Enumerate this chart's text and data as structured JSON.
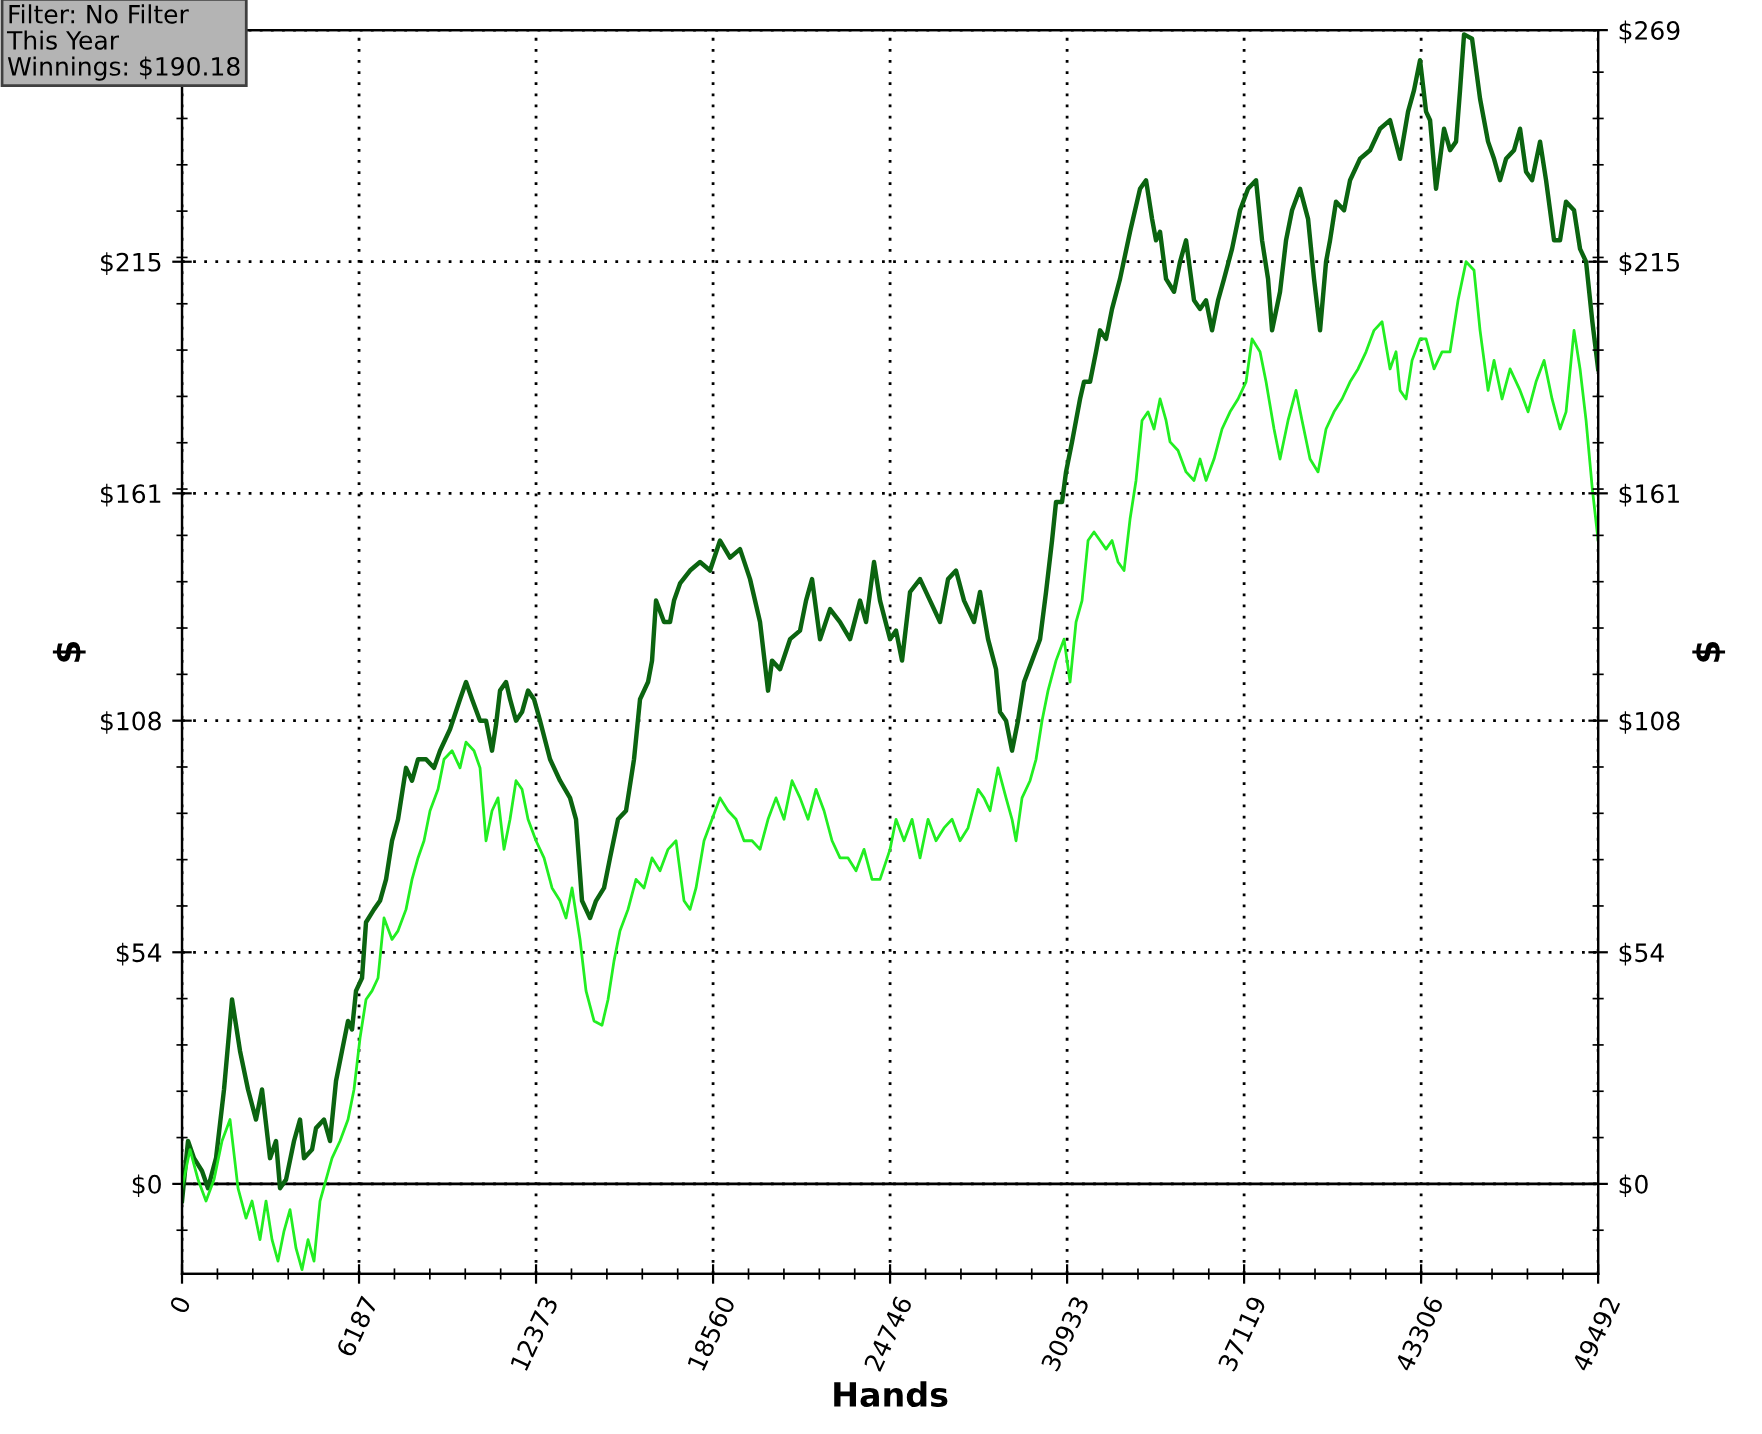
{
  "chart_data": {
    "type": "line",
    "xlabel": "Hands",
    "ylabel": "$",
    "y2label": "$",
    "annotations": [
      "Filter: No Filter",
      "This Year",
      "Winnings: $190.18"
    ],
    "xlim": [
      0,
      49492
    ],
    "xticks": [
      0,
      6187,
      12373,
      18560,
      24746,
      30933,
      37119,
      43306,
      49492
    ],
    "ylim": [
      -21,
      269
    ],
    "yticks": [
      {
        "value": 0,
        "label": "$0"
      },
      {
        "value": 54,
        "label": "$54"
      },
      {
        "value": 108,
        "label": "$108"
      },
      {
        "value": 161,
        "label": "$161"
      },
      {
        "value": 215,
        "label": "$215"
      },
      {
        "value": 269,
        "label": null
      }
    ],
    "y2lim": [
      -21,
      269
    ],
    "y2ticks": [
      {
        "value": 0,
        "label": "$0"
      },
      {
        "value": 54,
        "label": "$54"
      },
      {
        "value": 108,
        "label": "$108"
      },
      {
        "value": 161,
        "label": "$161"
      },
      {
        "value": 215,
        "label": "$215"
      },
      {
        "value": 269,
        "label": "$269"
      }
    ],
    "grid": true,
    "marker": "none",
    "line_style": "solid",
    "ref_lines": [
      {
        "axis": "y",
        "value": 0,
        "label": null,
        "color": "#000000"
      }
    ],
    "series": [
      {
        "color": "#0b6410",
        "x": [
          0,
          210,
          419,
          699,
          909,
          1188,
          1468,
          1748,
          2027,
          2307,
          2586,
          2796,
          3076,
          3285,
          3425,
          3635,
          3914,
          4124,
          4264,
          4544,
          4683,
          4963,
          5173,
          5382,
          5592,
          5802,
          5942,
          6081,
          6291,
          6431,
          6710,
          6920,
          7131,
          7340,
          7549,
          7829,
          8039,
          8248,
          8528,
          8807,
          9017,
          9367,
          9716,
          9926,
          10136,
          10415,
          10625,
          10835,
          10974,
          11114,
          11324,
          11464,
          11673,
          11883,
          12093,
          12302,
          12512,
          12862,
          13211,
          13561,
          13770,
          13980,
          14260,
          14469,
          14749,
          14959,
          15238,
          15518,
          15797,
          16007,
          16287,
          16427,
          16566,
          16846,
          17056,
          17195,
          17405,
          17755,
          18104,
          18454,
          18803,
          19153,
          19502,
          19852,
          20201,
          20481,
          20621,
          20900,
          21250,
          21599,
          21809,
          22019,
          22298,
          22648,
          22997,
          23347,
          23696,
          23906,
          24185,
          24395,
          24745,
          24954,
          25164,
          25444,
          25793,
          26143,
          26492,
          26772,
          27051,
          27331,
          27680,
          27890,
          28170,
          28449,
          28589,
          28799,
          29008,
          29218,
          29428,
          29708,
          29987,
          30197,
          30407,
          30546,
          30756,
          30896,
          31106,
          31385,
          31525,
          31735,
          31944,
          32084,
          32294,
          32504,
          32783,
          33133,
          33482,
          33692,
          33902,
          34041,
          34181,
          34391,
          34670,
          34880,
          35090,
          35369,
          35579,
          35789,
          35999,
          36208,
          36418,
          36698,
          36977,
          37257,
          37536,
          37746,
          37956,
          38096,
          38375,
          38585,
          38795,
          39074,
          39354,
          39563,
          39773,
          39983,
          40123,
          40332,
          40612,
          40822,
          41171,
          41521,
          41870,
          42220,
          42569,
          42849,
          43058,
          43268,
          43478,
          43618,
          43827,
          44107,
          44317,
          44526,
          44666,
          44806,
          45086,
          45365,
          45645,
          45854,
          46064,
          46274,
          46553,
          46763,
          46973,
          47183,
          47462,
          47672,
          47951,
          48161,
          48371,
          48650,
          48860,
          49070,
          49290,
          49492
        ],
        "values": [
          -4,
          10,
          6,
          3,
          -1,
          6,
          22,
          43,
          31,
          22,
          15,
          22,
          6,
          10,
          -1,
          1,
          10,
          15,
          6,
          8,
          13,
          15,
          10,
          24,
          31,
          38,
          36,
          45,
          48,
          61,
          64,
          66,
          71,
          80,
          85,
          97,
          94,
          99,
          99,
          97,
          101,
          106,
          113,
          117,
          113,
          108,
          108,
          101,
          107,
          115,
          117,
          113,
          108,
          110,
          115,
          113,
          108,
          99,
          94,
          90,
          85,
          66,
          62,
          66,
          69,
          76,
          85,
          87,
          99,
          113,
          117,
          122,
          136,
          131,
          131,
          136,
          140,
          143,
          145,
          143,
          150,
          146,
          148,
          141,
          131,
          115,
          122,
          120,
          127,
          129,
          136,
          141,
          127,
          134,
          131,
          127,
          136,
          131,
          145,
          136,
          127,
          129,
          122,
          138,
          141,
          136,
          131,
          141,
          143,
          136,
          131,
          138,
          127,
          120,
          110,
          108,
          101,
          108,
          117,
          122,
          127,
          138,
          150,
          159,
          159,
          166,
          173,
          183,
          187,
          187,
          194,
          199,
          197,
          204,
          211,
          222,
          232,
          234,
          225,
          220,
          222,
          211,
          208,
          215,
          220,
          206,
          204,
          206,
          199,
          206,
          211,
          218,
          227,
          232,
          234,
          220,
          211,
          199,
          208,
          220,
          227,
          232,
          225,
          211,
          199,
          215,
          220,
          229,
          227,
          234,
          239,
          241,
          246,
          248,
          239,
          250,
          255,
          262,
          250,
          248,
          232,
          246,
          241,
          243,
          255,
          268,
          267,
          253,
          243,
          239,
          234,
          239,
          241,
          246,
          236,
          234,
          243,
          234,
          220,
          220,
          229,
          227,
          218,
          215,
          201,
          190
        ]
      },
      {
        "color": "#22ee22",
        "x": [
          0,
          280,
          559,
          839,
          1118,
          1398,
          1678,
          1957,
          2237,
          2447,
          2726,
          2936,
          3146,
          3355,
          3565,
          3775,
          3984,
          4194,
          4404,
          4613,
          4823,
          5033,
          5243,
          5522,
          5802,
          6011,
          6221,
          6431,
          6641,
          6850,
          7060,
          7340,
          7549,
          7829,
          8039,
          8248,
          8458,
          8668,
          8947,
          9157,
          9437,
          9716,
          9926,
          10205,
          10415,
          10625,
          10835,
          11044,
          11254,
          11464,
          11673,
          11883,
          12093,
          12372,
          12652,
          12932,
          13211,
          13421,
          13631,
          13910,
          14120,
          14399,
          14679,
          14889,
          15098,
          15308,
          15588,
          15867,
          16147,
          16427,
          16706,
          16986,
          17265,
          17545,
          17755,
          17964,
          18244,
          18524,
          18803,
          19083,
          19362,
          19642,
          19922,
          20201,
          20481,
          20760,
          21040,
          21320,
          21599,
          21879,
          22158,
          22438,
          22718,
          22997,
          23277,
          23556,
          23836,
          24116,
          24395,
          24745,
          24954,
          25234,
          25514,
          25793,
          26073,
          26352,
          26632,
          26912,
          27191,
          27471,
          27820,
          28030,
          28240,
          28519,
          28799,
          29008,
          29148,
          29358,
          29638,
          29847,
          30057,
          30267,
          30546,
          30826,
          31036,
          31245,
          31455,
          31665,
          31874,
          32084,
          32294,
          32504,
          32713,
          32923,
          33133,
          33342,
          33552,
          33762,
          33971,
          34181,
          34391,
          34531,
          34810,
          35090,
          35369,
          35579,
          35789,
          36068,
          36348,
          36628,
          36907,
          37187,
          37397,
          37676,
          37886,
          38165,
          38375,
          38655,
          38934,
          39144,
          39424,
          39703,
          39983,
          40262,
          40542,
          40822,
          41101,
          41381,
          41660,
          41940,
          42220,
          42429,
          42569,
          42779,
          42989,
          43268,
          43478,
          43758,
          44037,
          44317,
          44596,
          44876,
          45155,
          45365,
          45645,
          45854,
          46134,
          46414,
          46763,
          47043,
          47322,
          47602,
          47882,
          48161,
          48371,
          48650,
          48860,
          49070,
          49290,
          49492
        ],
        "values": [
          -1,
          8,
          1,
          -4,
          1,
          10,
          15,
          -1,
          -8,
          -4,
          -13,
          -4,
          -13,
          -18,
          -11,
          -6,
          -15,
          -20,
          -13,
          -18,
          -4,
          1,
          6,
          10,
          15,
          22,
          34,
          43,
          45,
          48,
          62,
          57,
          59,
          64,
          71,
          76,
          80,
          87,
          92,
          99,
          101,
          97,
          103,
          101,
          97,
          80,
          87,
          90,
          78,
          85,
          94,
          92,
          85,
          80,
          76,
          69,
          66,
          62,
          69,
          57,
          45,
          38,
          37,
          43,
          52,
          59,
          64,
          71,
          69,
          76,
          73,
          78,
          80,
          66,
          64,
          69,
          80,
          85,
          90,
          87,
          85,
          80,
          80,
          78,
          85,
          90,
          85,
          94,
          90,
          85,
          92,
          87,
          80,
          76,
          76,
          73,
          78,
          71,
          71,
          78,
          85,
          80,
          85,
          76,
          85,
          80,
          83,
          85,
          80,
          83,
          92,
          90,
          87,
          97,
          90,
          85,
          80,
          90,
          94,
          99,
          108,
          115,
          122,
          127,
          117,
          131,
          136,
          150,
          152,
          150,
          148,
          150,
          145,
          143,
          155,
          164,
          178,
          180,
          176,
          183,
          178,
          173,
          171,
          166,
          164,
          169,
          164,
          169,
          176,
          180,
          183,
          187,
          197,
          194,
          187,
          176,
          169,
          178,
          185,
          178,
          169,
          166,
          176,
          180,
          183,
          187,
          190,
          194,
          199,
          201,
          190,
          194,
          185,
          183,
          192,
          197,
          197,
          190,
          194,
          194,
          206,
          215,
          213,
          199,
          185,
          192,
          183,
          190,
          185,
          180,
          187,
          192,
          183,
          176,
          180,
          199,
          190,
          178,
          162,
          150
        ]
      }
    ]
  }
}
